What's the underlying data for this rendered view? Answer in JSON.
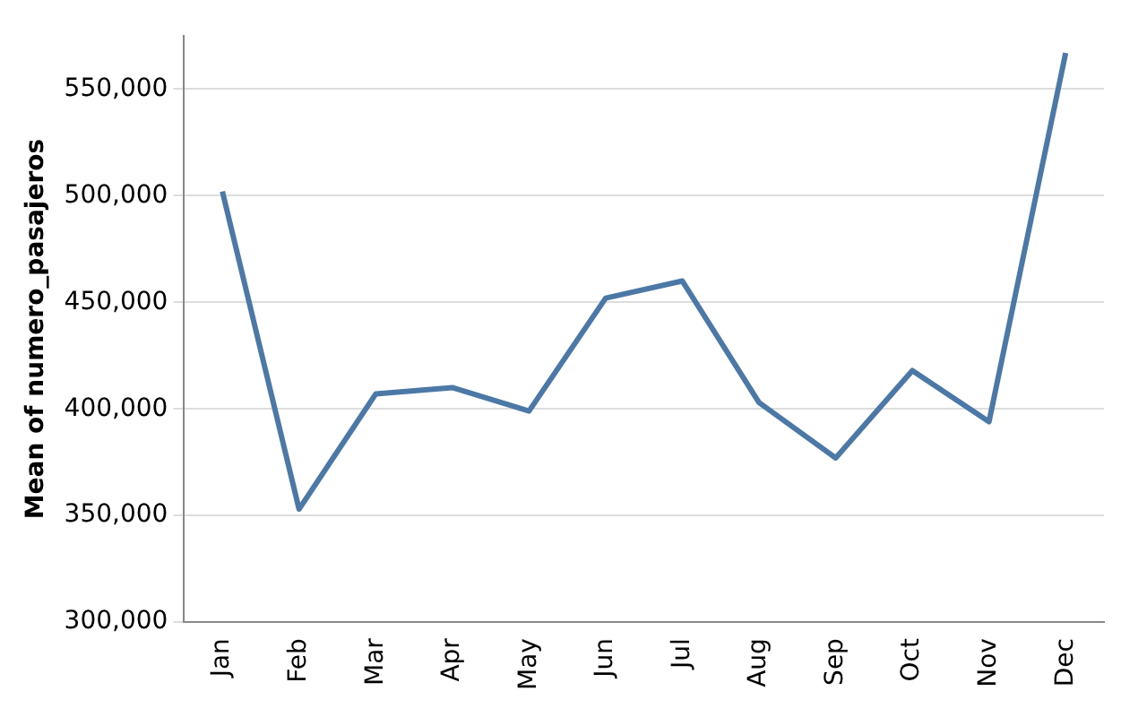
{
  "chart_data": {
    "type": "line",
    "ylabel": "Mean of numero_pasajeros",
    "categories": [
      "Jan",
      "Feb",
      "Mar",
      "Apr",
      "May",
      "Jun",
      "Jul",
      "Aug",
      "Sep",
      "Oct",
      "Nov",
      "Dec"
    ],
    "series": [
      {
        "color": "#4c78a8",
        "values": [
          502000,
          353000,
          407000,
          410000,
          399000,
          452000,
          460000,
          403000,
          377000,
          418000,
          394000,
          567000
        ]
      }
    ],
    "ylim": [
      300000,
      575000
    ],
    "yticks": [
      {
        "value": 300000,
        "label": "300,000"
      },
      {
        "value": 350000,
        "label": "350,000"
      },
      {
        "value": 400000,
        "label": "400,000"
      },
      {
        "value": 450000,
        "label": "450,000"
      },
      {
        "value": 500000,
        "label": "500,000"
      },
      {
        "value": 550000,
        "label": "550,000"
      }
    ],
    "grid": "y",
    "legend": false,
    "marker": "none",
    "line_style": "solid"
  }
}
